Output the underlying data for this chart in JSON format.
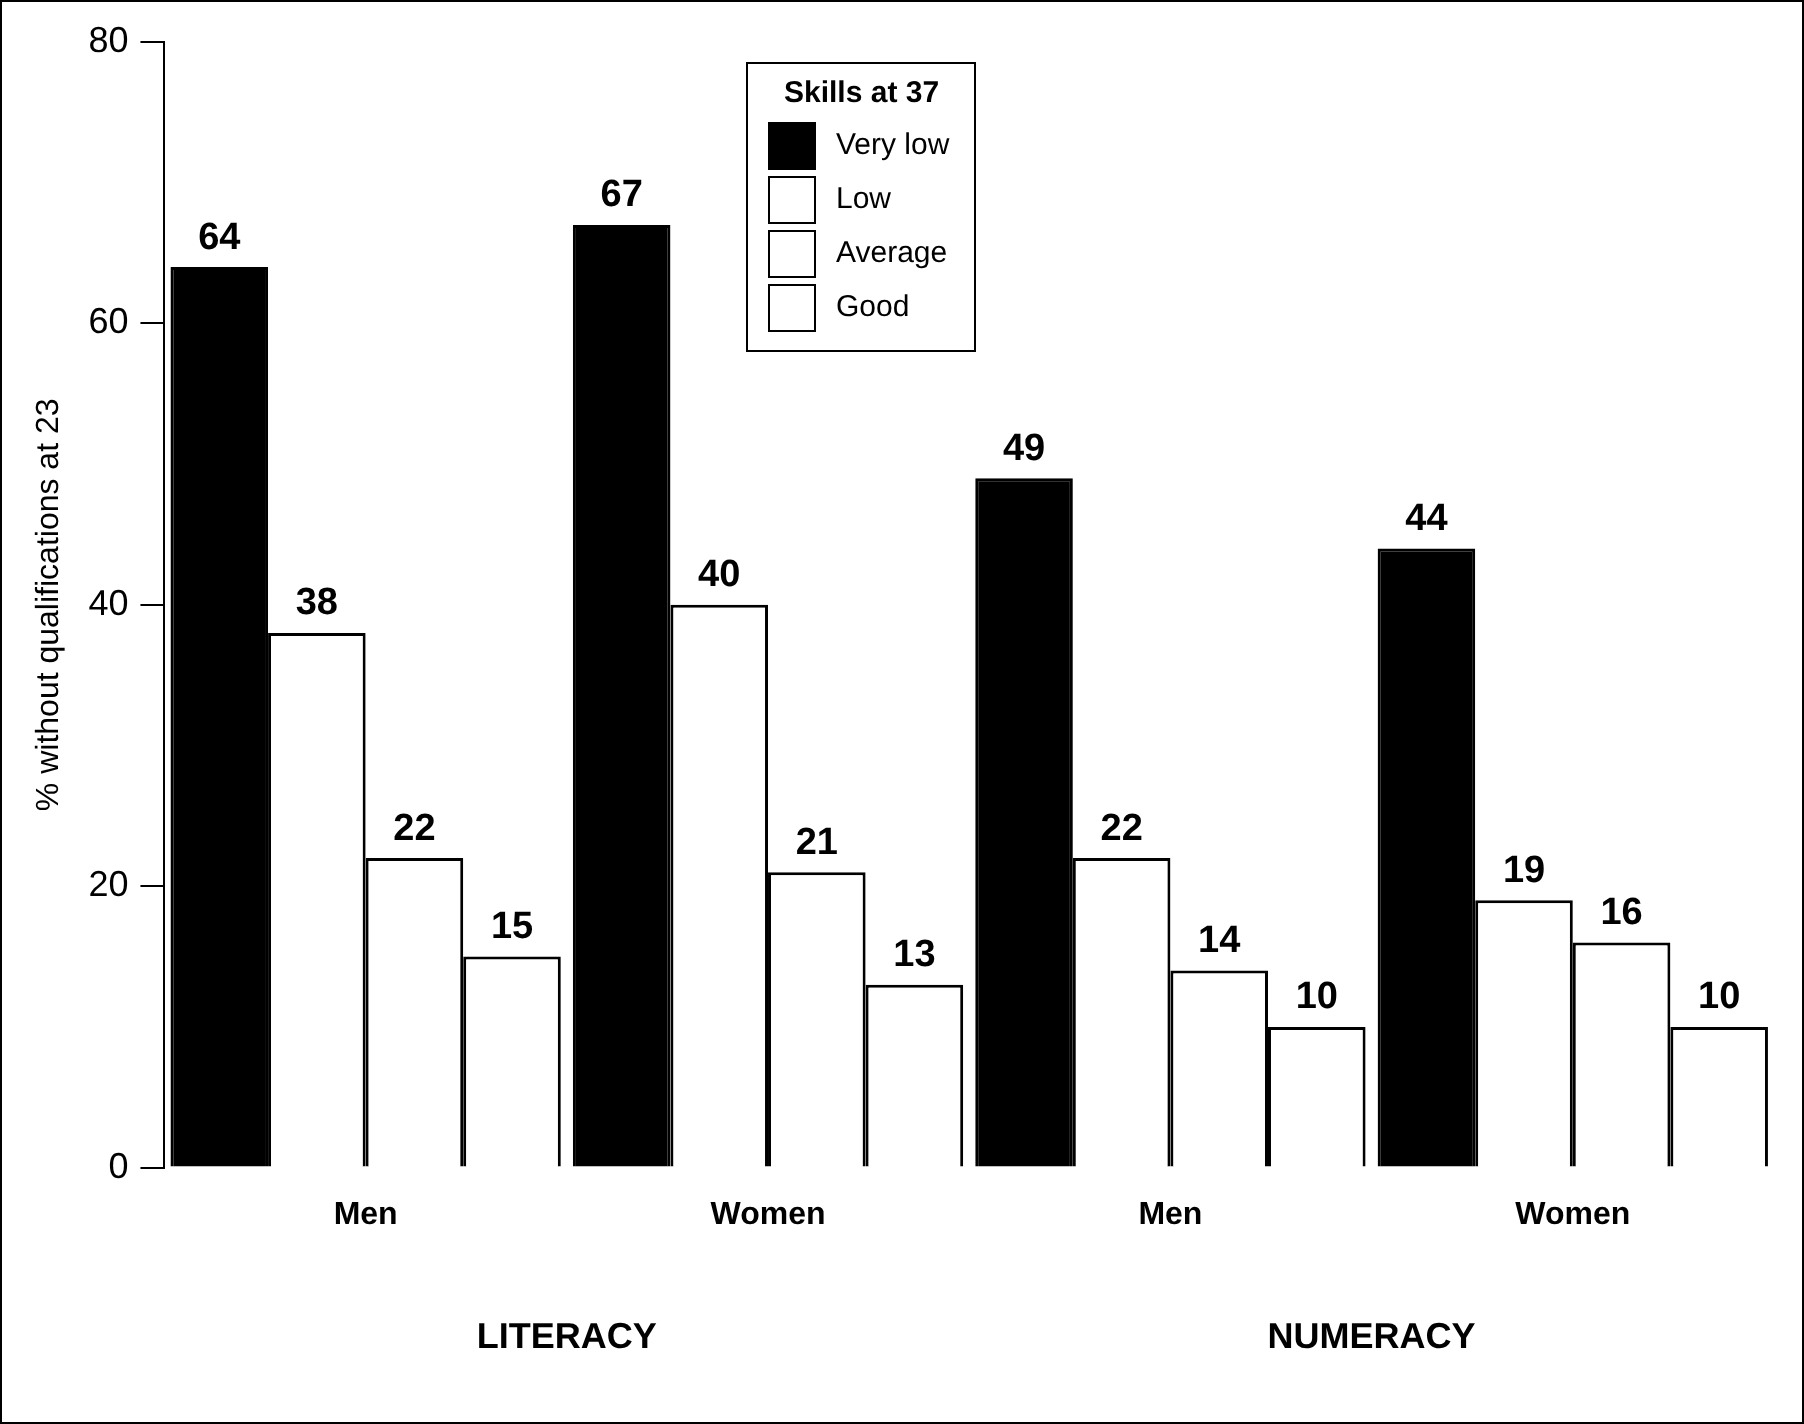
{
  "chart_data": {
    "type": "bar",
    "ylabel": "% without qualifications at 23",
    "legend_title": "Skills at 37",
    "categories": [
      "Men",
      "Women",
      "Men",
      "Women"
    ],
    "series": [
      {
        "name": "Very low",
        "color": "#000000",
        "values": [
          64,
          67,
          49,
          44
        ]
      },
      {
        "name": "Low",
        "color": "#ffffff",
        "values": [
          38,
          40,
          22,
          19
        ]
      },
      {
        "name": "Average",
        "color": "#ffffff",
        "values": [
          22,
          21,
          14,
          16
        ]
      },
      {
        "name": "Good",
        "color": "#ffffff",
        "values": [
          15,
          13,
          10,
          10
        ]
      }
    ],
    "ylim": [
      0,
      80
    ],
    "yticks": [
      0,
      20,
      40,
      60,
      80
    ],
    "grid": false,
    "legend": "top",
    "data_labels": true,
    "annotations": [
      "LITERACY",
      "NUMERACY"
    ]
  }
}
